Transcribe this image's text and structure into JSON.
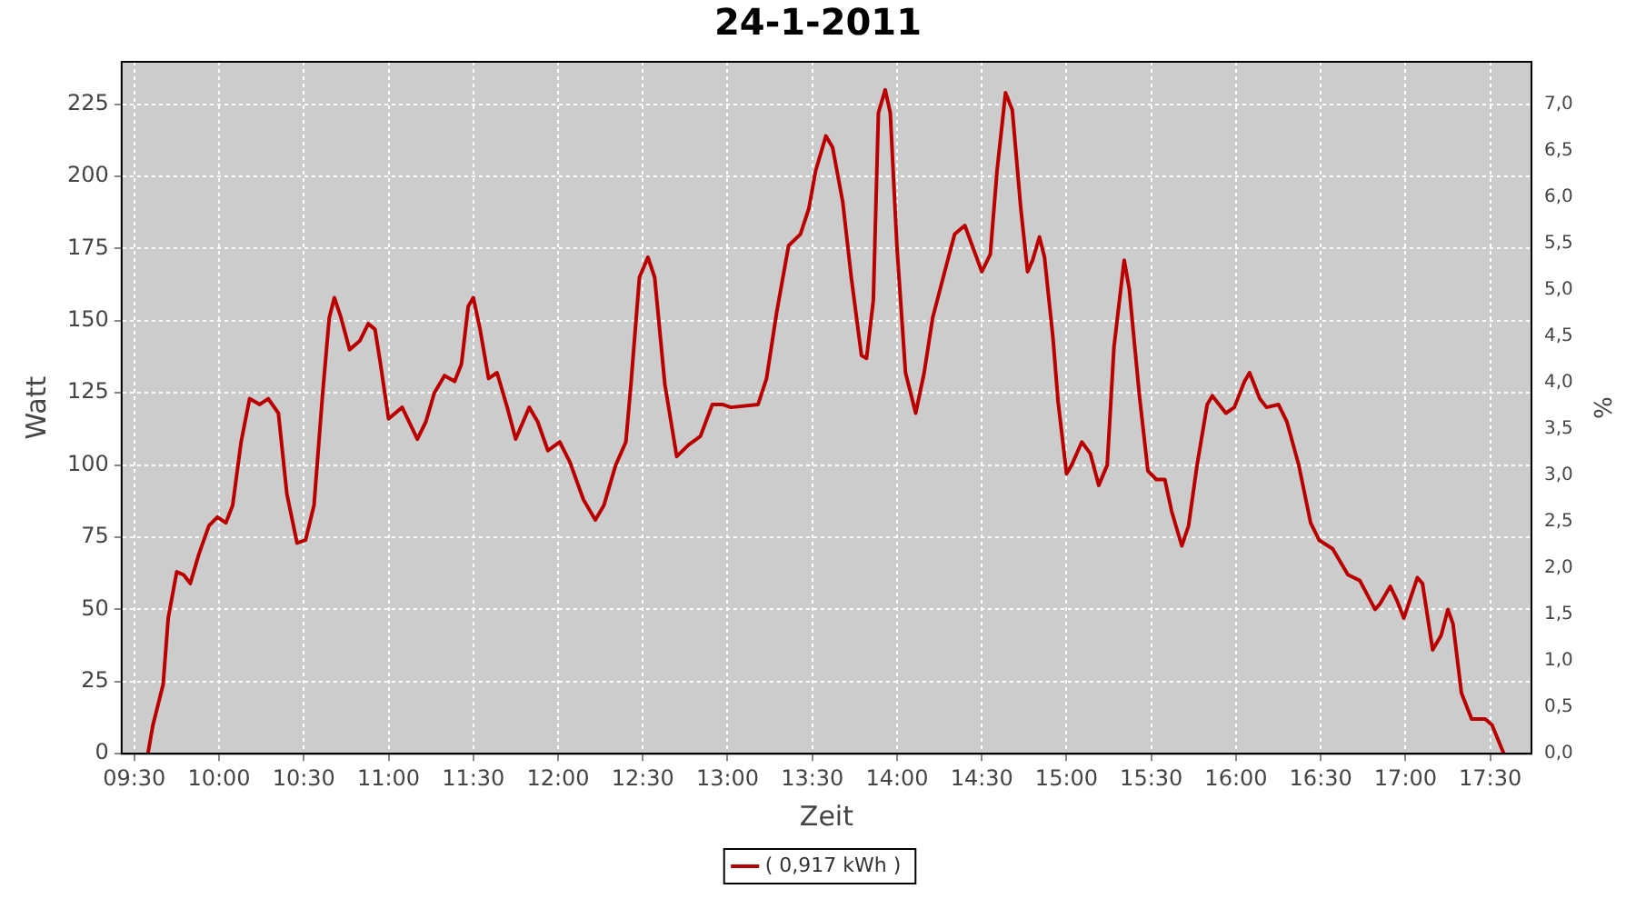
{
  "chart_data": {
    "type": "line",
    "title": "24-1-2011",
    "xlabel": "Zeit",
    "ylabel": "Watt",
    "y2label": "%",
    "x": [
      9.58,
      9.61,
      9.67,
      9.7,
      9.75,
      9.79,
      9.83,
      9.88,
      9.94,
      9.99,
      10.04,
      10.08,
      10.13,
      10.18,
      10.24,
      10.29,
      10.35,
      10.4,
      10.46,
      10.51,
      10.56,
      10.61,
      10.65,
      10.68,
      10.72,
      10.77,
      10.83,
      10.88,
      10.92,
      10.95,
      11.0,
      11.08,
      11.17,
      11.22,
      11.27,
      11.33,
      11.39,
      11.43,
      11.47,
      11.5,
      11.54,
      11.59,
      11.64,
      11.7,
      11.75,
      11.83,
      11.88,
      11.94,
      12.01,
      12.07,
      12.15,
      12.22,
      12.27,
      12.34,
      12.4,
      12.43,
      12.48,
      12.53,
      12.57,
      12.63,
      12.7,
      12.77,
      12.84,
      12.91,
      12.97,
      13.02,
      13.18,
      13.23,
      13.29,
      13.36,
      13.43,
      13.48,
      13.52,
      13.58,
      13.62,
      13.68,
      13.73,
      13.79,
      13.82,
      13.86,
      13.89,
      13.93,
      13.96,
      14.0,
      14.05,
      14.11,
      14.16,
      14.21,
      14.29,
      14.34,
      14.4,
      14.45,
      14.5,
      14.55,
      14.59,
      14.64,
      14.68,
      14.73,
      14.77,
      14.8,
      14.84,
      14.87,
      14.92,
      14.95,
      15.0,
      15.03,
      15.09,
      15.14,
      15.19,
      15.24,
      15.28,
      15.34,
      15.37,
      15.43,
      15.48,
      15.53,
      15.58,
      15.62,
      15.68,
      15.72,
      15.77,
      15.83,
      15.86,
      15.94,
      15.99,
      16.05,
      16.08,
      16.14,
      16.18,
      16.25,
      16.3,
      16.37,
      16.44,
      16.49,
      16.57,
      16.66,
      16.73,
      16.82,
      16.85,
      16.91,
      16.95,
      16.99,
      17.07,
      17.1,
      17.16,
      17.21,
      17.25,
      17.28,
      17.33,
      17.39,
      17.47,
      17.51,
      17.58
    ],
    "series": [
      {
        "name": "( 0,917 kWh )",
        "color": "#bb0000",
        "values": [
          0,
          10,
          24,
          47,
          63,
          62,
          59,
          69,
          79,
          82,
          80,
          86,
          108,
          123,
          121,
          123,
          118,
          90,
          73,
          74,
          86,
          124,
          151,
          158,
          151,
          140,
          143,
          149,
          147,
          136,
          116,
          120,
          109,
          115,
          125,
          131,
          129,
          135,
          155,
          158,
          147,
          130,
          132,
          120,
          109,
          120,
          115,
          105,
          108,
          101,
          88,
          81,
          86,
          100,
          108,
          128,
          165,
          172,
          165,
          128,
          103,
          107,
          110,
          121,
          121,
          120,
          121,
          130,
          153,
          176,
          180,
          189,
          202,
          214,
          210,
          191,
          165,
          138,
          137,
          157,
          222,
          230,
          222,
          175,
          132,
          118,
          132,
          151,
          169,
          180,
          183,
          175,
          167,
          173,
          202,
          229,
          223,
          189,
          167,
          171,
          179,
          172,
          144,
          122,
          97,
          100,
          108,
          104,
          93,
          100,
          141,
          171,
          161,
          124,
          98,
          95,
          95,
          84,
          72,
          79,
          100,
          121,
          124,
          118,
          120,
          129,
          132,
          123,
          120,
          121,
          115,
          100,
          80,
          74,
          71,
          62,
          60,
          50,
          52,
          58,
          53,
          47,
          61,
          59,
          36,
          41,
          50,
          45,
          21,
          12,
          12,
          10,
          0
        ]
      }
    ],
    "xlim": [
      9.425,
      17.743
    ],
    "xticks": [
      {
        "value": 9.5,
        "label": "09:30"
      },
      {
        "value": 10,
        "label": "10:00"
      },
      {
        "value": 10.5,
        "label": "10:30"
      },
      {
        "value": 11,
        "label": "11:00"
      },
      {
        "value": 11.5,
        "label": "11:30"
      },
      {
        "value": 12,
        "label": "12:00"
      },
      {
        "value": 12.5,
        "label": "12:30"
      },
      {
        "value": 13,
        "label": "13:00"
      },
      {
        "value": 13.5,
        "label": "13:30"
      },
      {
        "value": 14,
        "label": "14:00"
      },
      {
        "value": 14.5,
        "label": "14:30"
      },
      {
        "value": 15,
        "label": "15:00"
      },
      {
        "value": 15.5,
        "label": "15:30"
      },
      {
        "value": 16,
        "label": "16:00"
      },
      {
        "value": 16.5,
        "label": "16:30"
      },
      {
        "value": 17,
        "label": "17:00"
      },
      {
        "value": 17.5,
        "label": "17:30"
      }
    ],
    "ylim": [
      0,
      239.7
    ],
    "yticks": [
      0,
      25,
      50,
      75,
      100,
      125,
      150,
      175,
      200,
      225
    ],
    "y2lim": [
      0,
      7.456
    ],
    "y2ticks": [
      {
        "value": 0,
        "label": "0,0"
      },
      {
        "value": 0.5,
        "label": "0,5"
      },
      {
        "value": 1,
        "label": "1,0"
      },
      {
        "value": 1.5,
        "label": "1,5"
      },
      {
        "value": 2,
        "label": "2,0"
      },
      {
        "value": 2.5,
        "label": "2,5"
      },
      {
        "value": 3,
        "label": "3,0"
      },
      {
        "value": 3.5,
        "label": "3,5"
      },
      {
        "value": 4,
        "label": "4,0"
      },
      {
        "value": 4.5,
        "label": "4,5"
      },
      {
        "value": 5,
        "label": "5,0"
      },
      {
        "value": 5.5,
        "label": "5,5"
      },
      {
        "value": 6,
        "label": "6,0"
      },
      {
        "value": 6.5,
        "label": "6,5"
      },
      {
        "value": 7,
        "label": "7,0"
      }
    ],
    "grid": true,
    "legend": "bottom",
    "marker": "none",
    "line_style": "solid"
  }
}
